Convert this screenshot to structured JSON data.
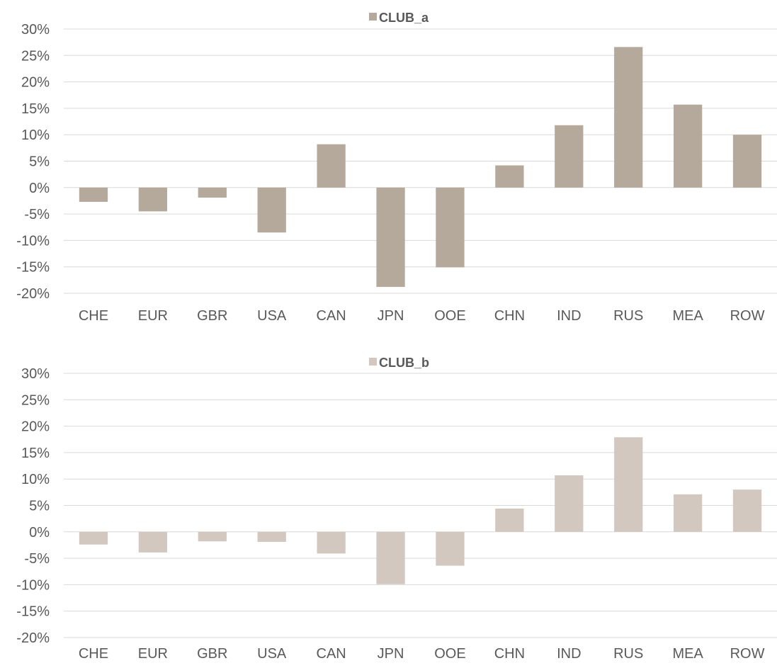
{
  "chart_data": [
    {
      "type": "bar",
      "categories": [
        "CHE",
        "EUR",
        "GBR",
        "USA",
        "CAN",
        "JPN",
        "OOE",
        "CHN",
        "IND",
        "RUS",
        "MEA",
        "ROW"
      ],
      "series": [
        {
          "name": "CLUB_a",
          "color": "#b5a99c",
          "values": [
            -2.7,
            -4.5,
            -1.9,
            -8.5,
            8.2,
            -18.8,
            -15.1,
            4.2,
            11.8,
            26.6,
            15.7,
            10.0
          ]
        }
      ],
      "ylim": [
        -20,
        30
      ],
      "yticks": [
        "30%",
        "25%",
        "20%",
        "15%",
        "10%",
        "5%",
        "0%",
        "-5%",
        "-10%",
        "-15%",
        "-20%"
      ],
      "ytick_values": [
        30,
        25,
        20,
        15,
        10,
        5,
        0,
        -5,
        -10,
        -15,
        -20
      ],
      "grid": true,
      "legend": "top-center"
    },
    {
      "type": "bar",
      "categories": [
        "CHE",
        "EUR",
        "GBR",
        "USA",
        "CAN",
        "JPN",
        "OOE",
        "CHN",
        "IND",
        "RUS",
        "MEA",
        "ROW"
      ],
      "series": [
        {
          "name": "CLUB_b",
          "color": "#d2c8c0",
          "values": [
            -2.4,
            -3.9,
            -1.8,
            -1.9,
            -4.1,
            -9.9,
            -6.4,
            4.4,
            10.7,
            17.9,
            7.1,
            8.0
          ]
        }
      ],
      "ylim": [
        -20,
        30
      ],
      "yticks": [
        "30%",
        "25%",
        "20%",
        "15%",
        "10%",
        "5%",
        "0%",
        "-5%",
        "-10%",
        "-15%",
        "-20%"
      ],
      "ytick_values": [
        30,
        25,
        20,
        15,
        10,
        5,
        0,
        -5,
        -10,
        -15,
        -20
      ],
      "grid": true,
      "legend": "top-center"
    }
  ]
}
